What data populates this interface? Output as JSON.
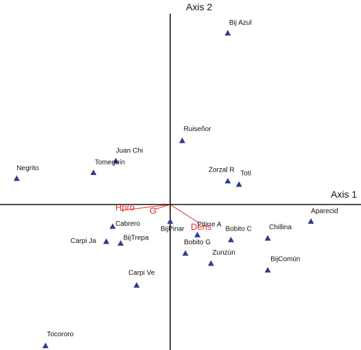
{
  "chart_data": {
    "type": "scatter",
    "title": "",
    "xlabel": "Axis 1",
    "ylabel": "Axis 2",
    "xlim": [
      -1.0,
      1.1
    ],
    "ylim": [
      -1.1,
      1.1
    ],
    "grid": false,
    "marker_color": "#2e3d8f",
    "vector_color": "#e0302a",
    "points": [
      {
        "label": "Bij Azul",
        "x": 0.36,
        "y": 1.02
      },
      {
        "label": "Ruiseñor",
        "x": 0.075,
        "y": 0.38
      },
      {
        "label": "Juan Chi",
        "x": -0.34,
        "y": 0.26
      },
      {
        "label": "Tomeguín",
        "x": -0.48,
        "y": 0.19
      },
      {
        "label": "Negrito",
        "x": -0.96,
        "y": 0.155
      },
      {
        "label": "Zorzal R",
        "x": 0.36,
        "y": 0.14
      },
      {
        "label": "Totí",
        "x": 0.43,
        "y": 0.12
      },
      {
        "label": "Aparecid",
        "x": 0.88,
        "y": -0.1
      },
      {
        "label": "Chillina",
        "x": 0.61,
        "y": -0.2
      },
      {
        "label": "Bobito C",
        "x": 0.38,
        "y": -0.21
      },
      {
        "label": "Pitirre A",
        "x": 0.17,
        "y": -0.18
      },
      {
        "label": "BijPinar",
        "x": 0.0,
        "y": -0.1
      },
      {
        "label": "Cabrero",
        "x": -0.36,
        "y": -0.13
      },
      {
        "label": "Carpi Ja",
        "x": -0.4,
        "y": -0.22
      },
      {
        "label": "BijTrepa",
        "x": -0.31,
        "y": -0.23
      },
      {
        "label": "Bobito G",
        "x": 0.095,
        "y": -0.29
      },
      {
        "label": "Zunzún",
        "x": 0.255,
        "y": -0.35
      },
      {
        "label": "BijComún",
        "x": 0.61,
        "y": -0.39
      },
      {
        "label": "Carpi  Ve",
        "x": -0.21,
        "y": -0.48
      },
      {
        "label": "Tocororo",
        "x": -0.78,
        "y": -0.84
      }
    ],
    "vectors": [
      {
        "label": "Hpro",
        "x": -0.31,
        "y": -0.035
      },
      {
        "label": "G",
        "x": -0.1,
        "y": -0.03
      },
      {
        "label": "Dens",
        "x": 0.18,
        "y": -0.11
      }
    ]
  }
}
